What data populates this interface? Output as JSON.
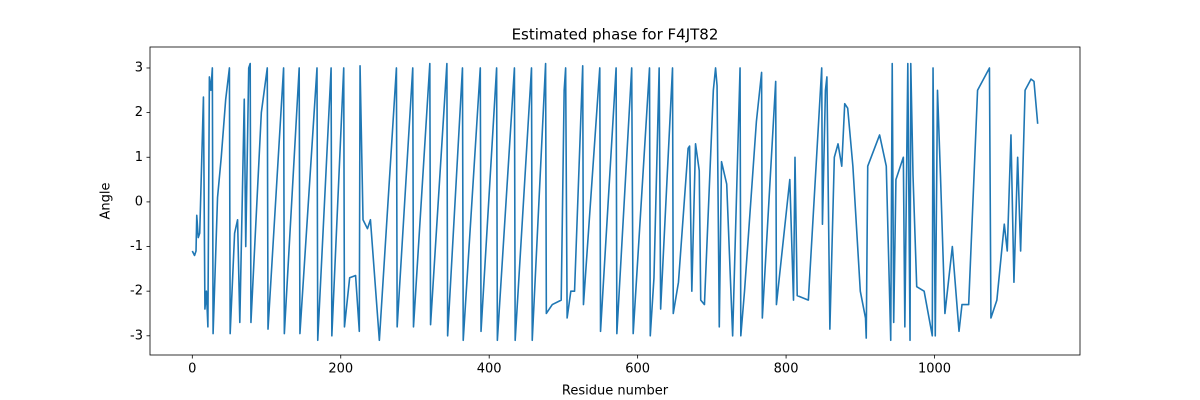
{
  "chart_data": {
    "type": "line",
    "title": "Estimated phase for F4JT82",
    "x_label": "Residue number",
    "y_label": "Angle",
    "color": "#1f77b4",
    "xlim": [
      -57,
      1196
    ],
    "ylim": [
      -3.43,
      3.47
    ],
    "xticks": [
      0,
      200,
      400,
      600,
      800,
      1000
    ],
    "yticks": [
      -3,
      -2,
      -1,
      0,
      1,
      2,
      3
    ],
    "x": [
      0,
      3,
      5,
      6,
      8,
      10,
      15,
      17,
      19,
      21,
      23,
      25,
      27,
      28,
      34,
      39,
      45,
      50,
      51,
      57,
      61,
      64,
      70,
      72,
      76,
      78,
      79,
      93,
      101,
      102,
      123,
      124,
      144,
      145,
      168,
      169,
      187,
      188,
      204,
      205,
      212,
      220,
      225,
      226,
      230,
      236,
      240,
      252,
      275,
      276,
      297,
      298,
      320,
      321,
      343,
      344,
      364,
      365,
      388,
      389,
      410,
      411,
      434,
      435,
      457,
      458,
      476,
      477,
      485,
      497,
      501,
      503,
      505,
      510,
      515,
      526,
      527,
      549,
      550,
      571,
      572,
      592,
      594,
      616,
      617,
      622,
      629,
      631,
      647,
      648,
      655,
      668,
      670,
      673,
      678,
      683,
      685,
      690,
      702,
      705,
      707,
      710,
      713,
      720,
      728,
      738,
      739,
      744,
      760,
      767,
      768,
      786,
      787,
      805,
      810,
      812,
      815,
      830,
      848,
      849,
      853,
      855,
      859,
      865,
      870,
      875,
      879,
      883,
      890,
      900,
      907,
      908,
      910,
      926,
      935,
      941,
      943,
      945,
      948,
      958,
      960,
      964,
      967,
      968,
      971,
      976,
      986,
      997,
      998,
      1001,
      1004,
      1008,
      1014,
      1024,
      1033,
      1037,
      1046,
      1058,
      1074,
      1076,
      1084,
      1094,
      1098,
      1103,
      1107,
      1112,
      1116,
      1122,
      1130,
      1134,
      1139
    ],
    "series": [
      {
        "values": [
          -1.1,
          -1.2,
          -1.1,
          -0.3,
          -0.8,
          -0.7,
          2.35,
          -2.4,
          -2.0,
          -2.8,
          2.8,
          2.5,
          3.0,
          -2.95,
          0.1,
          1.0,
          2.3,
          3.0,
          -2.95,
          -0.7,
          -0.4,
          -2.7,
          2.3,
          -1.0,
          3.0,
          3.1,
          -2.7,
          2.0,
          3.0,
          -2.85,
          3.0,
          -2.95,
          3.0,
          -2.95,
          3.0,
          -3.1,
          3.0,
          -3.0,
          3.0,
          -2.8,
          -1.7,
          -1.65,
          -2.9,
          3.05,
          -0.4,
          -0.6,
          -0.4,
          -3.1,
          3.0,
          -2.8,
          3.0,
          -2.8,
          3.1,
          -2.75,
          3.1,
          -3.0,
          3.0,
          -3.1,
          3.0,
          -2.9,
          3.0,
          -3.1,
          3.0,
          -3.1,
          3.0,
          -3.1,
          3.1,
          -2.5,
          -2.3,
          -2.2,
          2.5,
          3.0,
          -2.6,
          -2.0,
          -2.0,
          3.05,
          -2.3,
          3.0,
          -2.9,
          3.0,
          -2.95,
          3.0,
          -2.95,
          3.0,
          -3.0,
          -1.7,
          3.0,
          -2.4,
          3.0,
          -2.5,
          -1.8,
          1.2,
          1.25,
          -2.0,
          1.3,
          0.7,
          -2.2,
          -2.3,
          2.5,
          3.0,
          2.6,
          -2.8,
          0.9,
          0.4,
          -3.0,
          3.0,
          -3.0,
          -2.0,
          1.8,
          2.9,
          -2.6,
          2.7,
          -2.3,
          0.5,
          -2.2,
          1.0,
          -2.1,
          -2.2,
          3.0,
          -0.5,
          2.5,
          2.8,
          -2.85,
          1.0,
          1.3,
          0.8,
          2.2,
          2.1,
          0.8,
          -2.0,
          -2.6,
          -3.05,
          0.8,
          1.5,
          0.8,
          -3.1,
          3.1,
          -2.7,
          0.5,
          1.0,
          -2.8,
          3.1,
          -3.1,
          3.1,
          0.6,
          -1.9,
          -2.0,
          -3.0,
          3.0,
          -3.0,
          2.5,
          0.6,
          -2.5,
          -1.0,
          -2.9,
          -2.3,
          -2.3,
          2.5,
          3.0,
          -2.6,
          -2.2,
          -0.5,
          -1.1,
          1.5,
          -1.8,
          1.0,
          -1.1,
          2.5,
          2.75,
          2.7,
          1.75
        ]
      }
    ]
  }
}
